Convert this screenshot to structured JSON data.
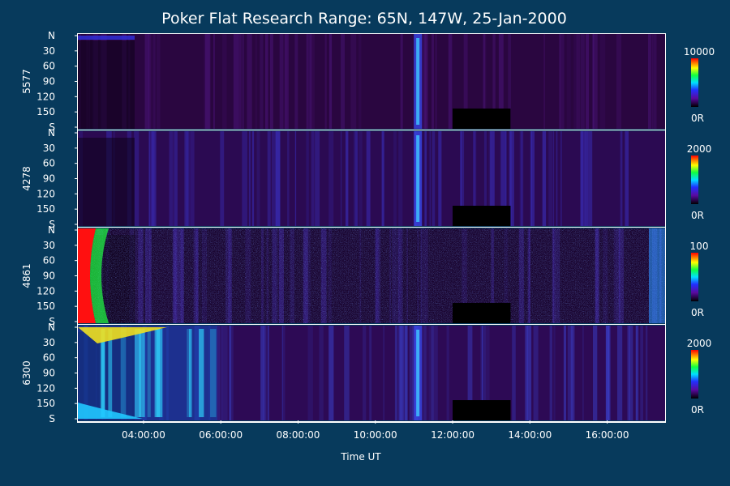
{
  "title": "Poker Flat Research Range: 65N, 147W, 25-Jan-2000",
  "xlabel": "Time UT",
  "x_ticks": [
    "04:00:00",
    "06:00:00",
    "08:00:00",
    "10:00:00",
    "12:00:00",
    "14:00:00",
    "16:00:00"
  ],
  "y_ticks": [
    "N",
    "30",
    "60",
    "90",
    "120",
    "150",
    "S"
  ],
  "chart_data": [
    {
      "type": "heatmap",
      "ylabel": "5577",
      "x_range_hours": [
        2.3,
        17.5
      ],
      "y_ticks": [
        "N",
        "30",
        "60",
        "90",
        "120",
        "150",
        "S"
      ],
      "colorbar": {
        "max_label": "10000",
        "min_label": "0R",
        "max": 10000,
        "min": 0
      },
      "gap_hours": [
        12.0,
        13.5
      ],
      "bright_band_hours": [
        11.1
      ]
    },
    {
      "type": "heatmap",
      "ylabel": "4278",
      "x_range_hours": [
        2.3,
        17.5
      ],
      "y_ticks": [
        "N",
        "30",
        "60",
        "90",
        "120",
        "150",
        "S"
      ],
      "colorbar": {
        "max_label": "2000",
        "min_label": "0R",
        "max": 2000,
        "min": 0
      },
      "gap_hours": [
        12.0,
        13.5
      ],
      "bright_band_hours": [
        11.1
      ]
    },
    {
      "type": "heatmap",
      "ylabel": "4861",
      "x_range_hours": [
        2.3,
        17.5
      ],
      "y_ticks": [
        "N",
        "30",
        "60",
        "90",
        "120",
        "150",
        "S"
      ],
      "colorbar": {
        "max_label": "100",
        "min_label": "0R",
        "max": 100,
        "min": 0
      },
      "gap_hours": [
        12.0,
        13.5
      ],
      "bright_band_hours": []
    },
    {
      "type": "heatmap",
      "ylabel": "6300",
      "x_range_hours": [
        2.3,
        17.5
      ],
      "y_ticks": [
        "N",
        "30",
        "60",
        "90",
        "120",
        "150",
        "S"
      ],
      "colorbar": {
        "max_label": "2000",
        "min_label": "0R",
        "max": 2000,
        "min": 0
      },
      "gap_hours": [
        12.0,
        13.5
      ],
      "bright_band_hours": [
        11.1
      ]
    }
  ]
}
